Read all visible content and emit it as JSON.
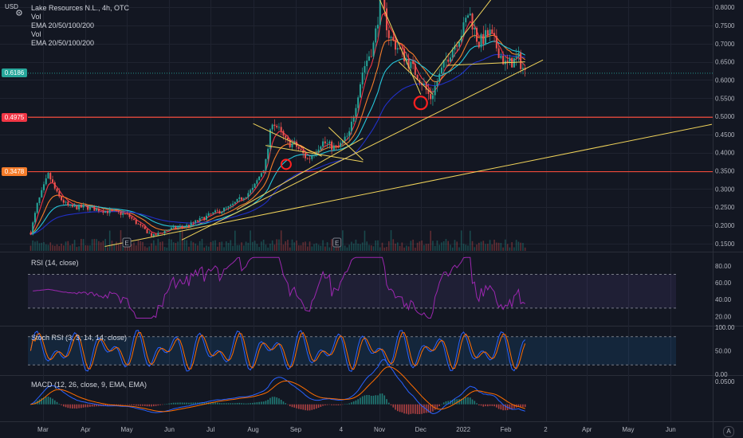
{
  "legend": {
    "title": "Lake Resources N.L., 4h, OTC",
    "items": [
      "Vol",
      "EMA 20/50/100/200",
      "Vol",
      "EMA 20/50/100/200"
    ]
  },
  "currency": "USD",
  "price_tags": [
    {
      "label": "0.6186",
      "color": "#26a69a",
      "value": 0.6186
    },
    {
      "label": "0.4975",
      "color": "#f23645",
      "value": 0.4975
    },
    {
      "label": "0.3478",
      "color": "#f57c2a",
      "value": 0.3478
    }
  ],
  "pane_labels": {
    "rsi": "RSI (14, close)",
    "stoch": "Stoch RSI (3, 3, 14, 14, close)",
    "macd": "MACD (12, 26, close, 9, EMA, EMA)"
  },
  "corner": "A",
  "colors": {
    "background": "#131722",
    "grid": "#1f2330",
    "up": "#26a69a",
    "down": "#ef5350",
    "ema20": "#f23645",
    "ema50": "#f57c2a",
    "ema100": "#26c6da",
    "ema200": "#2130c8",
    "rsi": "#9c27b0",
    "stoch_k": "#2962ff",
    "stoch_d": "#ff6d00",
    "trendline": "#f0d35a",
    "hline": "#f04a3a",
    "circle": "#ff2020"
  },
  "chart_data": [
    {
      "type": "candlestick",
      "title": "Lake Resources N.L., 4h, OTC",
      "ylabel": "USD",
      "ylim": [
        0.13,
        0.82
      ],
      "x_tick_labels": [
        "Mar",
        "Apr",
        "May",
        "Jun",
        "Jul",
        "Aug",
        "Sep",
        "4",
        "Nov",
        "Dec",
        "2022",
        "Feb",
        "2",
        "Apr",
        "May",
        "Jun"
      ],
      "y_tick_labels": [
        "0.1500",
        "0.2000",
        "0.2500",
        "0.3000",
        "0.3500",
        "0.4000",
        "0.4500",
        "0.5000",
        "0.5500",
        "0.6000",
        "0.6500",
        "0.7000",
        "0.7500",
        "0.8000"
      ],
      "y_ticks": [
        0.15,
        0.2,
        0.25,
        0.3,
        0.35,
        0.4,
        0.45,
        0.5,
        0.55,
        0.6,
        0.65,
        0.7,
        0.75,
        0.8
      ],
      "series": [
        {
          "name": "EMA 20/50/100/200",
          "values": []
        },
        {
          "name": "Vol",
          "values": []
        }
      ],
      "close_path": [
        [
          "2021-02-20",
          0.18
        ],
        [
          "2021-02-25",
          0.26
        ],
        [
          "2021-03-01",
          0.3
        ],
        [
          "2021-03-05",
          0.34
        ],
        [
          "2021-03-12",
          0.28
        ],
        [
          "2021-03-20",
          0.25
        ],
        [
          "2021-04-01",
          0.25
        ],
        [
          "2021-04-15",
          0.24
        ],
        [
          "2021-05-01",
          0.23
        ],
        [
          "2021-05-10",
          0.2
        ],
        [
          "2021-05-20",
          0.17
        ],
        [
          "2021-06-01",
          0.19
        ],
        [
          "2021-06-15",
          0.2
        ],
        [
          "2021-07-01",
          0.23
        ],
        [
          "2021-07-15",
          0.25
        ],
        [
          "2021-08-01",
          0.3
        ],
        [
          "2021-08-10",
          0.37
        ],
        [
          "2021-08-15",
          0.49
        ],
        [
          "2021-08-25",
          0.43
        ],
        [
          "2021-09-01",
          0.42
        ],
        [
          "2021-09-10",
          0.38
        ],
        [
          "2021-09-20",
          0.43
        ],
        [
          "2021-10-01",
          0.41
        ],
        [
          "2021-10-10",
          0.45
        ],
        [
          "2021-10-20",
          0.63
        ],
        [
          "2021-10-28",
          0.7
        ],
        [
          "2021-11-02",
          0.83
        ],
        [
          "2021-11-08",
          0.72
        ],
        [
          "2021-11-20",
          0.66
        ],
        [
          "2021-12-01",
          0.6
        ],
        [
          "2021-12-08",
          0.55
        ],
        [
          "2021-12-20",
          0.66
        ],
        [
          "2022-01-01",
          0.74
        ],
        [
          "2022-01-05",
          0.79
        ],
        [
          "2022-01-12",
          0.7
        ],
        [
          "2022-01-20",
          0.73
        ],
        [
          "2022-02-01",
          0.64
        ],
        [
          "2022-02-10",
          0.66
        ],
        [
          "2022-02-15",
          0.62
        ]
      ],
      "annotations": [
        {
          "kind": "horizontal_line",
          "value": 0.4975
        },
        {
          "kind": "horizontal_line",
          "value": 0.3478
        }
      ]
    },
    {
      "type": "line",
      "title": "RSI (14, close)",
      "ylim": [
        10,
        95
      ],
      "y_tick_labels": [
        "80.00",
        "60.00",
        "40.00",
        "20.00"
      ],
      "y_ticks": [
        80,
        60,
        40,
        20
      ],
      "band": [
        30,
        70
      ],
      "series": [
        {
          "name": "RSI",
          "values": []
        }
      ]
    },
    {
      "type": "line",
      "title": "Stoch RSI (3, 3, 14, 14, close)",
      "ylim": [
        0,
        100
      ],
      "y_tick_labels": [
        "100.00",
        "50.00",
        "0.00"
      ],
      "y_ticks": [
        100,
        50,
        0
      ],
      "band": [
        20,
        80
      ],
      "series": [
        {
          "name": "K",
          "values": []
        },
        {
          "name": "D",
          "values": []
        }
      ]
    },
    {
      "type": "bar",
      "title": "MACD (12, 26, close, 9, EMA, EMA)",
      "ylim": [
        -0.035,
        0.06
      ],
      "y_tick_labels": [
        "0.0500"
      ],
      "y_ticks": [
        0.05
      ],
      "series": [
        {
          "name": "MACD",
          "values": []
        },
        {
          "name": "Signal",
          "values": []
        },
        {
          "name": "Histogram",
          "values": []
        }
      ]
    }
  ]
}
